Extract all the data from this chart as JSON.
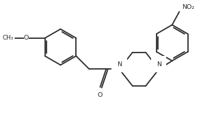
{
  "bg_color": "#ffffff",
  "line_color": "#2a2a2a",
  "line_width": 1.3,
  "font_size": 6.8,
  "xlim": [
    0.05,
    3.55
  ],
  "ylim": [
    0.0,
    1.7
  ]
}
